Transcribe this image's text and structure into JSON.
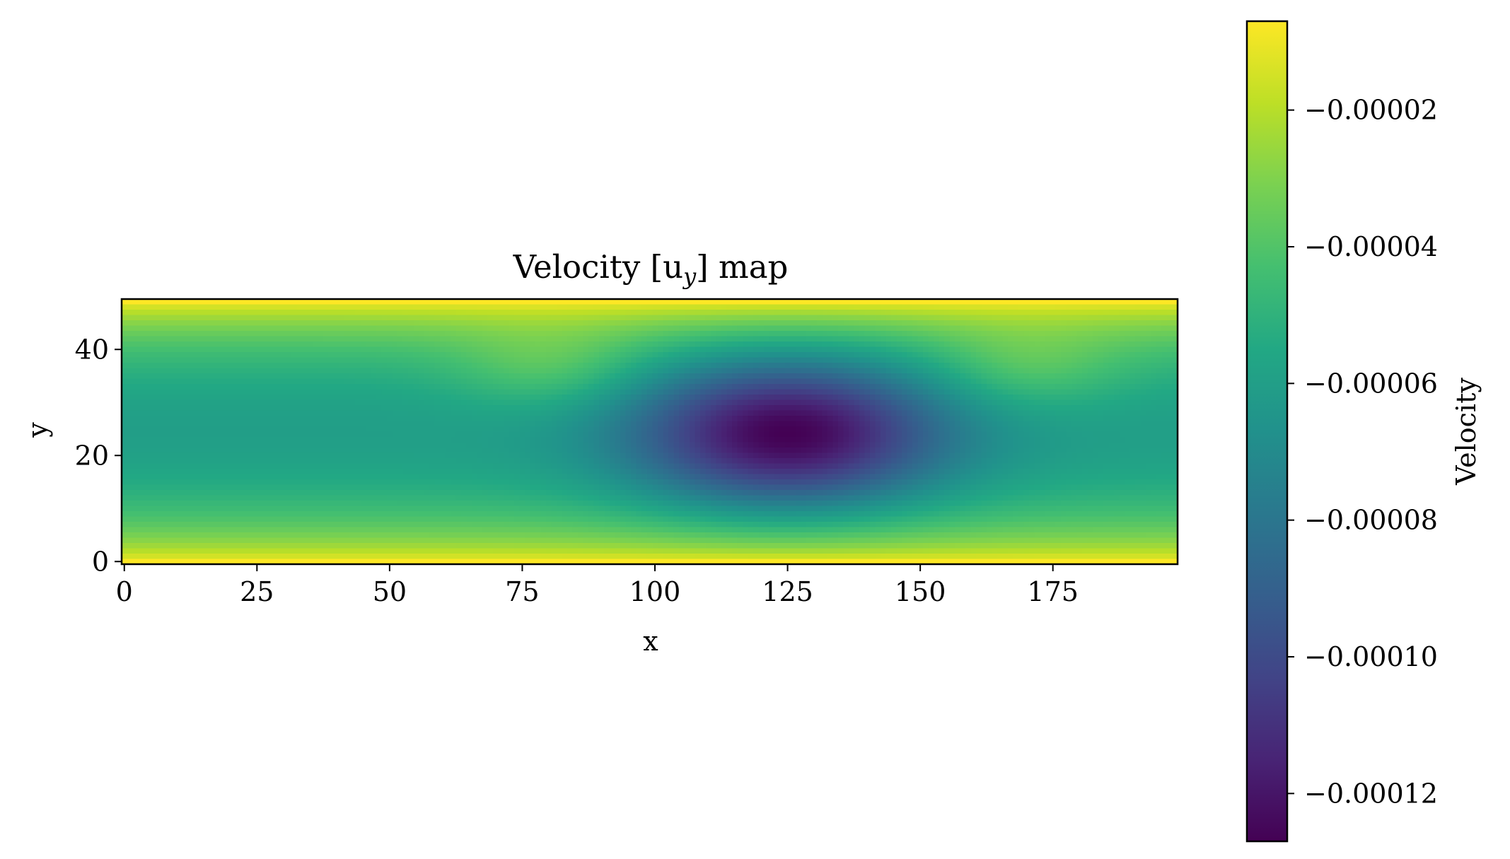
{
  "chart_data": {
    "type": "heatmap",
    "title": "Velocity [u",
    "title_sub": "y",
    "title_end": "] map",
    "xlabel": "x",
    "ylabel": "y",
    "xlim": [
      0,
      198
    ],
    "ylim": [
      0,
      49
    ],
    "x_ticks": [
      0,
      25,
      50,
      75,
      100,
      125,
      150,
      175
    ],
    "x_tick_labels": [
      "0",
      "25",
      "50",
      "75",
      "100",
      "125",
      "150",
      "175"
    ],
    "y_ticks": [
      0,
      20,
      40
    ],
    "y_tick_labels": [
      "0",
      "20",
      "40"
    ],
    "colormap": "viridis",
    "colorbar": {
      "label": "Velocity",
      "range": [
        -0.000127,
        -7e-06
      ],
      "ticks": [
        -2e-05,
        -4e-05,
        -6e-05,
        -8e-05,
        -0.0001,
        -0.00012
      ],
      "tick_labels": [
        "−0.00002",
        "−0.00004",
        "−0.00006",
        "−0.00008",
        "−0.00010",
        "−0.00012"
      ]
    },
    "field": {
      "grid": [
        199,
        50
      ],
      "wall_value": -7e-06,
      "channel_profile_peak": -6e-05,
      "dip_center": [
        125,
        24
      ],
      "dip_min": -0.000127,
      "side_shoulder_value": -4.5e-05
    }
  }
}
